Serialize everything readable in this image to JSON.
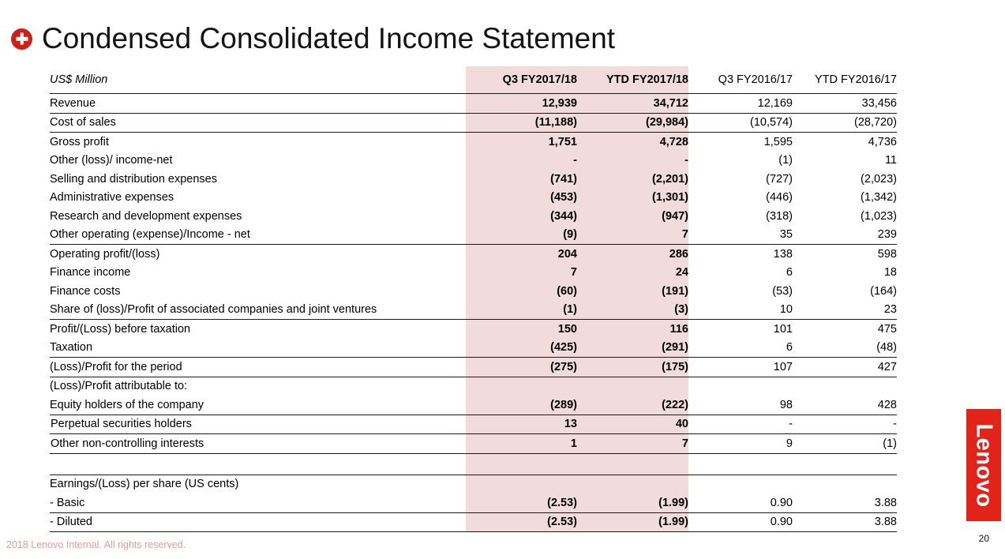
{
  "slide": {
    "title": "Condensed Consolidated Income Statement",
    "footer": "2018 Lenovo Internal. All rights reserved.",
    "page_number": "20",
    "logo_text": "Lenovo"
  },
  "colors": {
    "highlight_bg": "#f2dcdb",
    "lenovo_red": "#e2231a",
    "icon_red": "#cf2018",
    "footer_text": "#e29c9a"
  },
  "chart_data": {
    "type": "table",
    "title": "Condensed Consolidated Income Statement",
    "unit_label": "US$ Million",
    "columns": [
      "Q3 FY2017/18",
      "YTD FY2017/18",
      "Q3 FY2016/17",
      "YTD FY2016/17"
    ],
    "highlighted_column_indexes": [
      0,
      1
    ],
    "rows": [
      {
        "label": "Revenue",
        "values": [
          "12,939",
          "34,712",
          "12,169",
          "33,456"
        ],
        "line_below": true
      },
      {
        "label": "Cost of sales",
        "values": [
          "(11,188)",
          "(29,984)",
          "(10,574)",
          "(28,720)"
        ],
        "line_below": true
      },
      {
        "label": "Gross profit",
        "values": [
          "1,751",
          "4,728",
          "1,595",
          "4,736"
        ]
      },
      {
        "label": "Other (loss)/ income-net",
        "values": [
          "-",
          "-",
          "(1)",
          "11"
        ]
      },
      {
        "label": "Selling and distribution expenses",
        "values": [
          "(741)",
          "(2,201)",
          "(727)",
          "(2,023)"
        ]
      },
      {
        "label": "Administrative expenses",
        "values": [
          "(453)",
          "(1,301)",
          "(446)",
          "(1,342)"
        ]
      },
      {
        "label": "Research and development expenses",
        "values": [
          "(344)",
          "(947)",
          "(318)",
          "(1,023)"
        ]
      },
      {
        "label": "Other operating (expense)/Income - net",
        "values": [
          "(9)",
          "7",
          "35",
          "239"
        ],
        "line_below": true
      },
      {
        "label": "Operating profit/(loss)",
        "values": [
          "204",
          "286",
          "138",
          "598"
        ]
      },
      {
        "label": "Finance income",
        "values": [
          "7",
          "24",
          "6",
          "18"
        ]
      },
      {
        "label": "Finance costs",
        "values": [
          "(60)",
          "(191)",
          "(53)",
          "(164)"
        ]
      },
      {
        "label": "Share of (loss)/Profit of associated companies and joint ventures",
        "values": [
          "(1)",
          "(3)",
          "10",
          "23"
        ],
        "line_below": true
      },
      {
        "label": "Profit/(Loss) before taxation",
        "values": [
          "150",
          "116",
          "101",
          "475"
        ]
      },
      {
        "label": "Taxation",
        "values": [
          "(425)",
          "(291)",
          "6",
          "(48)"
        ],
        "line_below": true
      },
      {
        "label": "(Loss)/Profit for the period",
        "values": [
          "(275)",
          "(175)",
          "107",
          "427"
        ],
        "line_below": true
      },
      {
        "label": "(Loss)/Profit attributable to:",
        "values": [
          "",
          "",
          "",
          ""
        ]
      },
      {
        "label": "Equity holders of the company",
        "values": [
          "(289)",
          "(222)",
          "98",
          "428"
        ],
        "line_below": true
      },
      {
        "label": "Perpetual securities holders",
        "values": [
          "13",
          "40",
          "-",
          "-"
        ],
        "line_below": true,
        "indent": 0
      },
      {
        "label": "Other non-controlling interests",
        "values": [
          "1",
          "7",
          "9",
          "(1)"
        ],
        "line_below": true,
        "indent": 0
      },
      {
        "label": "",
        "values": [
          "",
          "",
          "",
          ""
        ],
        "spacer": true,
        "line_below": true
      },
      {
        "label": "Earnings/(Loss) per share (US cents)",
        "values": [
          "",
          "",
          "",
          ""
        ]
      },
      {
        "label": "- Basic",
        "values": [
          "(2.53)",
          "(1.99)",
          "0.90",
          "3.88"
        ],
        "line_below": true
      },
      {
        "label": "- Diluted",
        "values": [
          "(2.53)",
          "(1.99)",
          "0.90",
          "3.88"
        ],
        "line_below": true
      }
    ]
  }
}
